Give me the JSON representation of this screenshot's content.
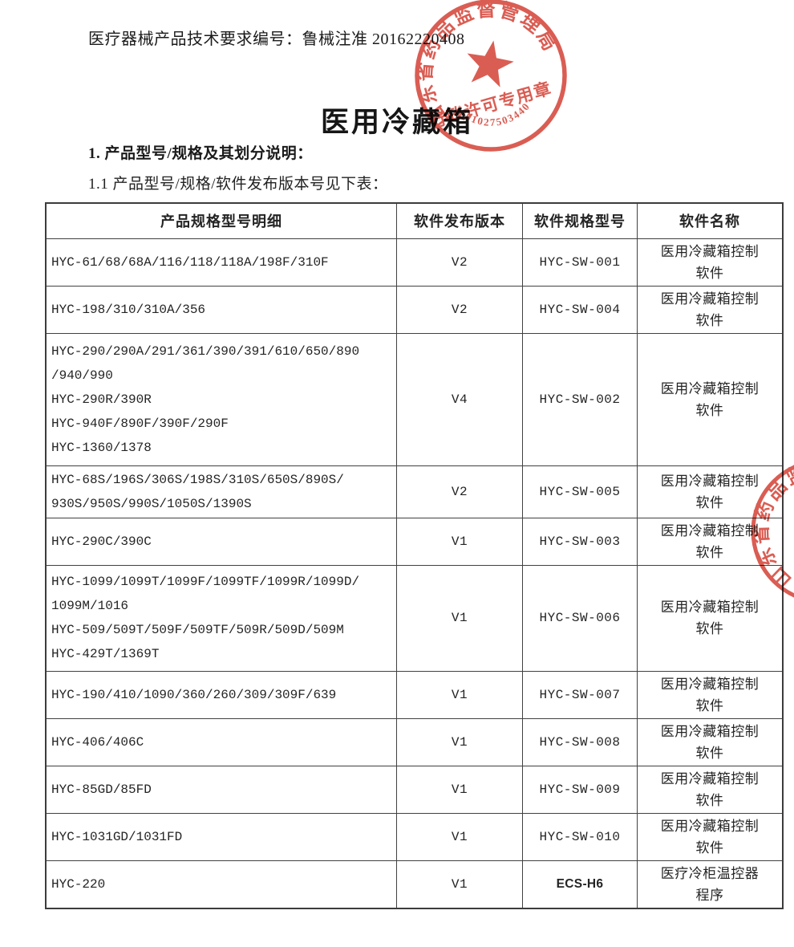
{
  "doc": {
    "header_number_line": "医疗器械产品技术要求编号：鲁械注准 20162220408",
    "title": "医用冷藏箱",
    "section_1": "1. 产品型号/规格及其划分说明：",
    "section_1_1": "1.1 产品型号/规格/软件发布版本号见下表："
  },
  "stamp_main": {
    "ring_text": "山东省药品监督管理局",
    "inner_text": "行政许可专用章",
    "serial_number": "3701027503440",
    "color": "#d5463b",
    "icon": "star-icon"
  },
  "stamp_partial": {
    "ring_text": "山东省药品监督管理局",
    "color": "#d5463b"
  },
  "table": {
    "headers": [
      "产品规格型号明细",
      "软件发布版本",
      "软件规格型号",
      "软件名称"
    ],
    "rows": [
      {
        "models": "HYC-61/68/68A/116/118/118A/198F/310F",
        "version": "V2",
        "sw_model": "HYC-SW-001",
        "sw_name": "医用冷藏箱控制\n软件"
      },
      {
        "models": "HYC-198/310/310A/356",
        "version": "V2",
        "sw_model": "HYC-SW-004",
        "sw_name": "医用冷藏箱控制\n软件"
      },
      {
        "models": "HYC-290/290A/291/361/390/391/610/650/890\n/940/990\nHYC-290R/390R\nHYC-940F/890F/390F/290F\nHYC-1360/1378",
        "version": "V4",
        "sw_model": "HYC-SW-002",
        "sw_name": "医用冷藏箱控制\n软件"
      },
      {
        "models": "HYC-68S/196S/306S/198S/310S/650S/890S/\n930S/950S/990S/1050S/1390S",
        "version": "V2",
        "sw_model": "HYC-SW-005",
        "sw_name": "医用冷藏箱控制\n软件"
      },
      {
        "models": "HYC-290C/390C",
        "version": "V1",
        "sw_model": "HYC-SW-003",
        "sw_name": "医用冷藏箱控制\n软件"
      },
      {
        "models": "HYC-1099/1099T/1099F/1099TF/1099R/1099D/\n1099M/1016\nHYC-509/509T/509F/509TF/509R/509D/509M\nHYC-429T/1369T",
        "version": "V1",
        "sw_model": "HYC-SW-006",
        "sw_name": "医用冷藏箱控制\n软件"
      },
      {
        "models": "HYC-190/410/1090/360/260/309/309F/639",
        "version": "V1",
        "sw_model": "HYC-SW-007",
        "sw_name": "医用冷藏箱控制\n软件"
      },
      {
        "models": "HYC-406/406C",
        "version": "V1",
        "sw_model": "HYC-SW-008",
        "sw_name": "医用冷藏箱控制\n软件"
      },
      {
        "models": "HYC-85GD/85FD",
        "version": "V1",
        "sw_model": "HYC-SW-009",
        "sw_name": "医用冷藏箱控制\n软件"
      },
      {
        "models": "HYC-1031GD/1031FD",
        "version": "V1",
        "sw_model": "HYC-SW-010",
        "sw_name": "医用冷藏箱控制\n软件"
      },
      {
        "models": "HYC-220",
        "version": "V1",
        "sw_model": "ECS-H6",
        "sw_model_style": "bold-sans",
        "sw_name": "医疗冷柜温控器\n程序"
      }
    ]
  }
}
